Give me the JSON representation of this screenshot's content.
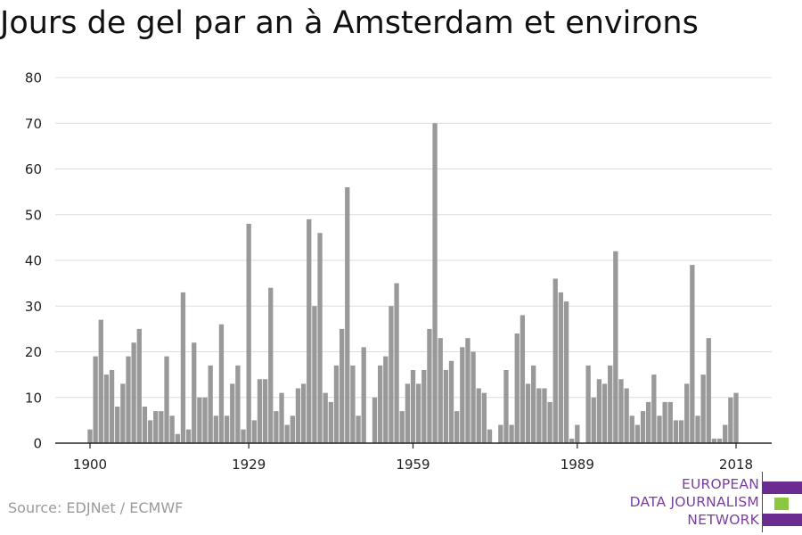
{
  "title": "Jours de gel par an à Amsterdam et environs",
  "source": "Source: EDJNet / ECMWF",
  "logo": {
    "lines": [
      "EUROPEAN",
      "DATA JOURNALISM",
      "NETWORK"
    ],
    "text_color": "#7b3f9e",
    "bar_colors": [
      "#6a2c91",
      "#8dc63f",
      "#6a2c91"
    ]
  },
  "colors": {
    "bar": "#999999",
    "grid": "#dddddd",
    "axis": "#222222",
    "text": "#222222"
  },
  "chart_data": {
    "type": "bar",
    "title": "Jours de gel par an à Amsterdam et environs",
    "xlabel": "",
    "ylabel": "",
    "ylim": [
      0,
      80
    ],
    "yticks": [
      0,
      10,
      20,
      30,
      40,
      50,
      60,
      70,
      80
    ],
    "xticks": [
      1900,
      1929,
      1959,
      1989,
      2018
    ],
    "grid": true,
    "x": [
      1900,
      1901,
      1902,
      1903,
      1904,
      1905,
      1906,
      1907,
      1908,
      1909,
      1910,
      1911,
      1912,
      1913,
      1914,
      1915,
      1916,
      1917,
      1918,
      1919,
      1920,
      1921,
      1922,
      1923,
      1924,
      1925,
      1926,
      1927,
      1928,
      1929,
      1930,
      1931,
      1932,
      1933,
      1934,
      1935,
      1936,
      1937,
      1938,
      1939,
      1940,
      1941,
      1942,
      1943,
      1944,
      1945,
      1946,
      1947,
      1948,
      1949,
      1950,
      1951,
      1952,
      1953,
      1954,
      1955,
      1956,
      1957,
      1958,
      1959,
      1960,
      1961,
      1962,
      1963,
      1964,
      1965,
      1966,
      1967,
      1968,
      1969,
      1970,
      1971,
      1972,
      1973,
      1974,
      1975,
      1976,
      1977,
      1978,
      1979,
      1980,
      1981,
      1982,
      1983,
      1984,
      1985,
      1986,
      1987,
      1988,
      1989,
      1990,
      1991,
      1992,
      1993,
      1994,
      1995,
      1996,
      1997,
      1998,
      1999,
      2000,
      2001,
      2002,
      2003,
      2004,
      2005,
      2006,
      2007,
      2008,
      2009,
      2010,
      2011,
      2012,
      2013,
      2014,
      2015,
      2016,
      2017,
      2018
    ],
    "values": [
      3,
      19,
      27,
      15,
      16,
      8,
      13,
      19,
      22,
      25,
      8,
      5,
      7,
      7,
      19,
      6,
      2,
      33,
      3,
      22,
      10,
      10,
      17,
      6,
      26,
      6,
      13,
      17,
      3,
      48,
      5,
      14,
      14,
      34,
      7,
      11,
      4,
      6,
      12,
      13,
      49,
      30,
      46,
      11,
      9,
      17,
      25,
      56,
      17,
      6,
      21,
      0,
      10,
      17,
      19,
      30,
      35,
      7,
      13,
      16,
      13,
      16,
      25,
      70,
      23,
      16,
      18,
      7,
      21,
      23,
      20,
      12,
      11,
      3,
      0,
      4,
      16,
      4,
      24,
      28,
      13,
      17,
      12,
      12,
      9,
      36,
      33,
      31,
      1,
      4,
      0,
      17,
      10,
      14,
      13,
      17,
      42,
      14,
      12,
      6,
      4,
      7,
      9,
      15,
      6,
      9,
      9,
      5,
      5,
      13,
      39,
      6,
      15,
      23,
      1,
      1,
      4,
      10,
      11
    ]
  }
}
